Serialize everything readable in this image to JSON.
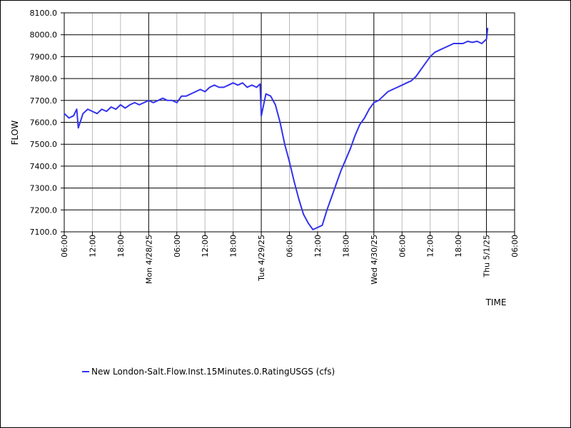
{
  "colors": {
    "series": "#3333ee",
    "grid_major": "#000000",
    "grid_minor": "#bbbbbb",
    "background": "#ffffff"
  },
  "chart_data": {
    "type": "line",
    "title": "",
    "xlabel": "TIME",
    "ylabel": "FLOW",
    "ylim": [
      7100,
      8100
    ],
    "xlim": [
      "2025-04-27T06:00",
      "2025-05-01T06:00"
    ],
    "grid": true,
    "legend_position": "bottom-left",
    "y_ticks": [
      "7100.0",
      "7200.0",
      "7300.0",
      "7400.0",
      "7500.0",
      "7600.0",
      "7700.0",
      "7800.0",
      "7900.0",
      "8000.0",
      "8100.0"
    ],
    "x_ticks": [
      {
        "t": "2025-04-27T06:00",
        "label": "06:00"
      },
      {
        "t": "2025-04-27T12:00",
        "label": "12:00"
      },
      {
        "t": "2025-04-27T18:00",
        "label": "18:00"
      },
      {
        "t": "2025-04-28T00:00",
        "label": "Mon 4/28/25"
      },
      {
        "t": "2025-04-28T06:00",
        "label": "06:00"
      },
      {
        "t": "2025-04-28T12:00",
        "label": "12:00"
      },
      {
        "t": "2025-04-28T18:00",
        "label": "18:00"
      },
      {
        "t": "2025-04-29T00:00",
        "label": "Tue 4/29/25"
      },
      {
        "t": "2025-04-29T06:00",
        "label": "06:00"
      },
      {
        "t": "2025-04-29T12:00",
        "label": "12:00"
      },
      {
        "t": "2025-04-29T18:00",
        "label": "18:00"
      },
      {
        "t": "2025-04-30T00:00",
        "label": "Wed 4/30/25"
      },
      {
        "t": "2025-04-30T06:00",
        "label": "06:00"
      },
      {
        "t": "2025-04-30T12:00",
        "label": "12:00"
      },
      {
        "t": "2025-04-30T18:00",
        "label": "18:00"
      },
      {
        "t": "2025-05-01T00:00",
        "label": "Thu 5/1/25"
      },
      {
        "t": "2025-05-01T06:00",
        "label": "06:00"
      }
    ],
    "series": [
      {
        "name": "New London-Salt.Flow.Inst.15Minutes.0.RatingUSGS (cfs)",
        "x": [
          "2025-04-27T06:00",
          "2025-04-27T07:00",
          "2025-04-27T08:00",
          "2025-04-27T08:40",
          "2025-04-27T09:00",
          "2025-04-27T10:00",
          "2025-04-27T11:00",
          "2025-04-27T12:00",
          "2025-04-27T13:00",
          "2025-04-27T14:00",
          "2025-04-27T15:00",
          "2025-04-27T16:00",
          "2025-04-27T17:00",
          "2025-04-27T18:00",
          "2025-04-27T19:00",
          "2025-04-27T20:00",
          "2025-04-27T21:00",
          "2025-04-27T22:00",
          "2025-04-27T23:00",
          "2025-04-28T00:00",
          "2025-04-28T01:00",
          "2025-04-28T02:00",
          "2025-04-28T03:00",
          "2025-04-28T04:00",
          "2025-04-28T05:00",
          "2025-04-28T06:00",
          "2025-04-28T07:00",
          "2025-04-28T08:00",
          "2025-04-28T09:00",
          "2025-04-28T10:00",
          "2025-04-28T11:00",
          "2025-04-28T12:00",
          "2025-04-28T13:00",
          "2025-04-28T14:00",
          "2025-04-28T15:00",
          "2025-04-28T16:00",
          "2025-04-28T17:00",
          "2025-04-28T18:00",
          "2025-04-28T19:00",
          "2025-04-28T20:00",
          "2025-04-28T21:00",
          "2025-04-28T22:00",
          "2025-04-28T23:00",
          "2025-04-28T23:45",
          "2025-04-29T00:00",
          "2025-04-29T01:00",
          "2025-04-29T02:00",
          "2025-04-29T03:00",
          "2025-04-29T04:00",
          "2025-04-29T05:00",
          "2025-04-29T06:00",
          "2025-04-29T07:00",
          "2025-04-29T08:00",
          "2025-04-29T09:00",
          "2025-04-29T10:00",
          "2025-04-29T11:00",
          "2025-04-29T12:00",
          "2025-04-29T13:00",
          "2025-04-29T14:00",
          "2025-04-29T15:00",
          "2025-04-29T16:00",
          "2025-04-29T17:00",
          "2025-04-29T18:00",
          "2025-04-29T19:00",
          "2025-04-29T20:00",
          "2025-04-29T21:00",
          "2025-04-29T22:00",
          "2025-04-29T23:00",
          "2025-04-30T00:00",
          "2025-04-30T01:00",
          "2025-04-30T02:00",
          "2025-04-30T03:00",
          "2025-04-30T04:00",
          "2025-04-30T05:00",
          "2025-04-30T06:00",
          "2025-04-30T07:00",
          "2025-04-30T08:00",
          "2025-04-30T09:00",
          "2025-04-30T10:00",
          "2025-04-30T11:00",
          "2025-04-30T12:00",
          "2025-04-30T13:00",
          "2025-04-30T14:00",
          "2025-04-30T15:00",
          "2025-04-30T16:00",
          "2025-04-30T17:00",
          "2025-04-30T18:00",
          "2025-04-30T19:00",
          "2025-04-30T20:00",
          "2025-04-30T21:00",
          "2025-04-30T22:00",
          "2025-04-30T23:00",
          "2025-05-01T00:00",
          "2025-05-01T00:15"
        ],
        "values": [
          7640,
          7620,
          7630,
          7660,
          7575,
          7640,
          7660,
          7650,
          7640,
          7660,
          7650,
          7670,
          7660,
          7680,
          7665,
          7680,
          7690,
          7680,
          7690,
          7700,
          7690,
          7700,
          7710,
          7700,
          7700,
          7690,
          7720,
          7720,
          7730,
          7740,
          7750,
          7740,
          7760,
          7770,
          7760,
          7760,
          7770,
          7780,
          7770,
          7780,
          7760,
          7770,
          7760,
          7775,
          7630,
          7730,
          7720,
          7680,
          7600,
          7500,
          7420,
          7330,
          7250,
          7180,
          7140,
          7110,
          7120,
          7130,
          7200,
          7260,
          7320,
          7380,
          7430,
          7480,
          7540,
          7590,
          7620,
          7660,
          7690,
          7700,
          7720,
          7740,
          7750,
          7760,
          7770,
          7780,
          7790,
          7810,
          7840,
          7870,
          7900,
          7920,
          7930,
          7940,
          7950,
          7960,
          7960,
          7960,
          7970,
          7965,
          7970,
          7960,
          7980,
          8030
        ]
      }
    ]
  }
}
